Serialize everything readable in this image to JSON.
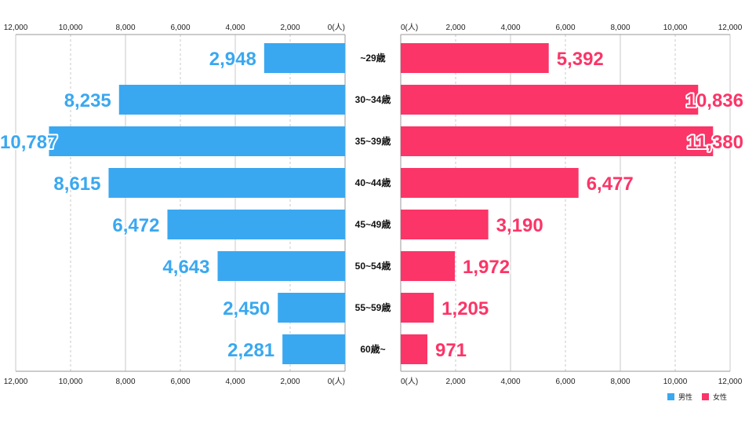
{
  "chart_data": {
    "type": "bar",
    "categories": [
      "~29歳",
      "30~34歳",
      "35~39歳",
      "40~44歳",
      "45~49歳",
      "50~54歳",
      "55~59歳",
      "60歳~"
    ],
    "series": [
      {
        "name": "男性",
        "color": "#3aa8f0",
        "values": [
          2948,
          8235,
          10787,
          8615,
          6472,
          4643,
          2450,
          2281
        ]
      },
      {
        "name": "女性",
        "color": "#fb3567",
        "values": [
          5392,
          10836,
          11380,
          6477,
          3190,
          1972,
          1205,
          971
        ]
      }
    ],
    "value_labels": {
      "left": [
        "2,948",
        "8,235",
        "10,787",
        "8,615",
        "6,472",
        "4,643",
        "2,450",
        "2,281"
      ],
      "right": [
        "5,392",
        "10,836",
        "11,380",
        "6,477",
        "3,190",
        "1,972",
        "1,205",
        "971"
      ]
    },
    "xlim": [
      0,
      12000
    ],
    "ticks_left": [
      "12,000",
      "10,000",
      "8,000",
      "6,000",
      "4,000",
      "2,000",
      "0(人)"
    ],
    "ticks_right": [
      "0(人)",
      "2,000",
      "4,000",
      "6,000",
      "8,000",
      "10,000",
      "12,000"
    ],
    "tick_values": [
      12000,
      10000,
      8000,
      6000,
      4000,
      2000,
      0
    ],
    "grid": true,
    "legend_position": "bottom-right",
    "legend": [
      {
        "label": "男性",
        "color": "#3aa8f0"
      },
      {
        "label": "女性",
        "color": "#fb3567"
      }
    ]
  }
}
